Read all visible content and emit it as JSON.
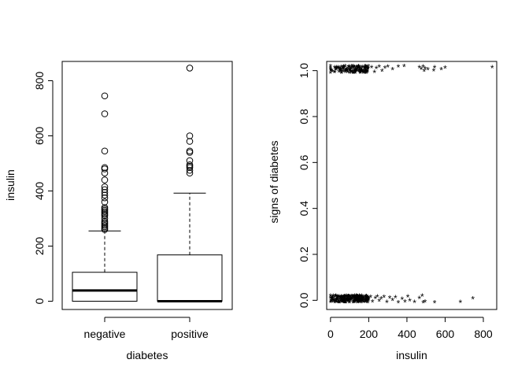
{
  "chart_data": [
    {
      "type": "boxplot",
      "xlabel": "diabetes",
      "ylabel": "insulin",
      "categories": [
        "negative",
        "positive"
      ],
      "ylim": [
        -30,
        870
      ],
      "y_ticks": [
        0,
        200,
        400,
        600,
        800
      ],
      "grid": false,
      "boxes": [
        {
          "name": "negative",
          "min": 0,
          "q1": 0,
          "median": 39,
          "q3": 105,
          "whisker_high": 255,
          "outliers": [
            260,
            265,
            270,
            275,
            280,
            285,
            290,
            300,
            310,
            315,
            320,
            325,
            330,
            335,
            340,
            360,
            375,
            385,
            395,
            405,
            415,
            440,
            465,
            480,
            485,
            545,
            680,
            745
          ]
        },
        {
          "name": "positive",
          "min": 0,
          "q1": 0,
          "median": 0,
          "q3": 168,
          "whisker_high": 392,
          "outliers": [
            465,
            475,
            485,
            490,
            495,
            510,
            540,
            545,
            580,
            600,
            846
          ]
        }
      ]
    },
    {
      "type": "scatter",
      "xlabel": "insulin",
      "ylabel": "signs of diabetes",
      "xlim": [
        -20,
        870
      ],
      "ylim": [
        -0.04,
        1.04
      ],
      "x_ticks": [
        0,
        200,
        400,
        600,
        800
      ],
      "y_ticks": [
        "0.0",
        "0.2",
        "0.4",
        "0.6",
        "0.8",
        "1.0"
      ],
      "marker": "*",
      "grid": false,
      "groups": [
        {
          "y": 0,
          "cluster": {
            "count": 230,
            "x_range": [
              0,
              200
            ]
          },
          "points": [
            [
              0,
              0.015
            ],
            [
              0,
              -0.012
            ],
            [
              0,
              0.005
            ],
            [
              210,
              0.01
            ],
            [
              220,
              -0.01
            ],
            [
              235,
              0.005
            ],
            [
              245,
              0.012
            ],
            [
              255,
              -0.008
            ],
            [
              265,
              0.003
            ],
            [
              280,
              0.01
            ],
            [
              295,
              -0.012
            ],
            [
              310,
              0.006
            ],
            [
              325,
              -0.004
            ],
            [
              340,
              0.008
            ],
            [
              355,
              -0.014
            ],
            [
              375,
              0.002
            ],
            [
              390,
              -0.01
            ],
            [
              405,
              0.012
            ],
            [
              415,
              -0.006
            ],
            [
              440,
              -0.012
            ],
            [
              465,
              0.004
            ],
            [
              480,
              0.015
            ],
            [
              485,
              -0.015
            ],
            [
              495,
              -0.01
            ],
            [
              545,
              -0.015
            ],
            [
              680,
              -0.012
            ],
            [
              745,
              0.003
            ]
          ]
        },
        {
          "y": 1,
          "cluster": {
            "count": 130,
            "x_range": [
              0,
              200
            ]
          },
          "points": [
            [
              0,
              0.015
            ],
            [
              0,
              -0.015
            ],
            [
              0,
              0.005
            ],
            [
              215,
              0.01
            ],
            [
              230,
              -0.012
            ],
            [
              240,
              0.005
            ],
            [
              255,
              0.012
            ],
            [
              270,
              -0.006
            ],
            [
              285,
              0.008
            ],
            [
              300,
              0.012
            ],
            [
              325,
              0.0
            ],
            [
              355,
              0.012
            ],
            [
              385,
              0.015
            ],
            [
              465,
              0.01
            ],
            [
              475,
              0.002
            ],
            [
              485,
              0.012
            ],
            [
              490,
              -0.006
            ],
            [
              495,
              0.004
            ],
            [
              510,
              0.0
            ],
            [
              540,
              -0.005
            ],
            [
              545,
              0.01
            ],
            [
              580,
              0.0
            ],
            [
              600,
              0.008
            ],
            [
              846,
              0.01
            ]
          ]
        }
      ]
    }
  ]
}
